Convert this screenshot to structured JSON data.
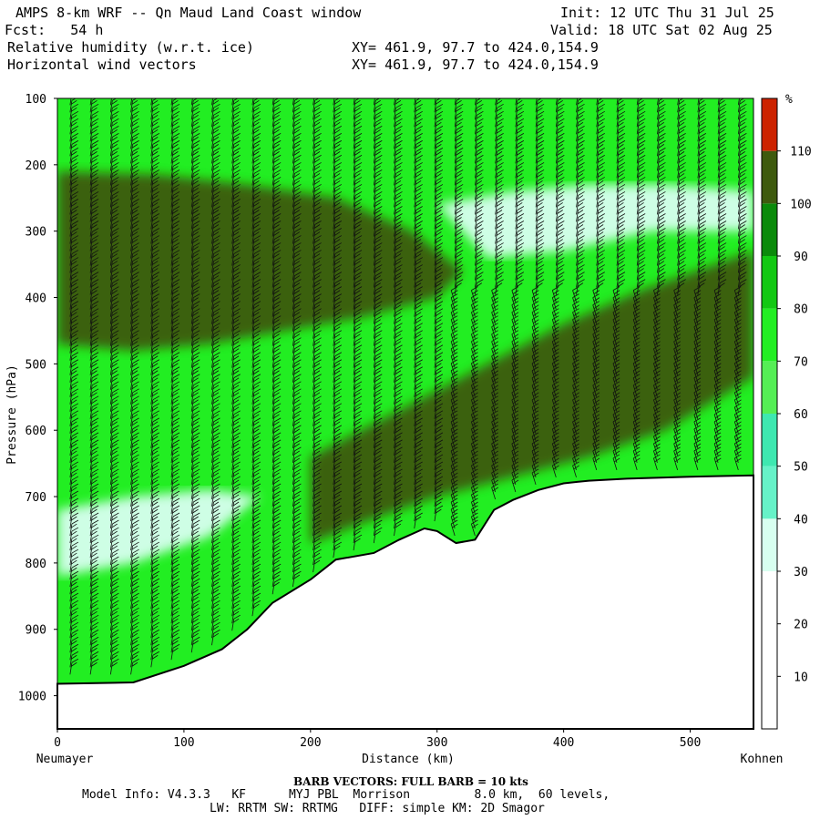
{
  "header": {
    "title": "AMPS 8-km WRF -- Qn Maud Land Coast window",
    "fcst": "Fcst:   54 h",
    "line3": "Relative humidity (w.r.t. ice)",
    "line4": "Horizontal wind vectors",
    "init": "Init: 12 UTC Thu 31 Jul 25",
    "valid": "Valid: 18 UTC Sat 02 Aug 25",
    "xy1": "XY= 461.9, 97.7 to 424.0,154.9",
    "xy2": "XY= 461.9, 97.7 to 424.0,154.9"
  },
  "footer": {
    "barb_note": "BARB VECTORS:  FULL BARB = 10 kts",
    "model_line1": "Model Info: V4.3.3   KF      MYJ PBL  Morrison         8.0 km,  60 levels,",
    "model_line2": "LW: RRTM SW: RRTMG   DIFF: simple KM: 2D Smagor"
  },
  "chart_data": {
    "type": "heatmap",
    "title": "Relative humidity (w.r.t. ice)",
    "xlabel": "Distance (km)",
    "ylabel": "Pressure (hPa)",
    "xlim": [
      0,
      550
    ],
    "ylim": [
      1050,
      100
    ],
    "x_ticks": [
      0,
      100,
      200,
      300,
      400,
      500
    ],
    "y_ticks": [
      100,
      200,
      300,
      400,
      500,
      600,
      700,
      800,
      900,
      1000
    ],
    "x_endpoint_labels": [
      "Neumayer",
      "Kohnen"
    ],
    "colorbar": {
      "unit": "%",
      "ticks": [
        10,
        20,
        30,
        40,
        50,
        60,
        70,
        80,
        90,
        100,
        110
      ],
      "bins": [
        {
          "from": 0,
          "to": 30,
          "color": "#ffffff"
        },
        {
          "from": 30,
          "to": 40,
          "color": "#d8fff0"
        },
        {
          "from": 40,
          "to": 50,
          "color": "#66f2c8"
        },
        {
          "from": 50,
          "to": 60,
          "color": "#3ee8b0"
        },
        {
          "from": 60,
          "to": 70,
          "color": "#55ee55"
        },
        {
          "from": 70,
          "to": 80,
          "color": "#22ee22"
        },
        {
          "from": 80,
          "to": 90,
          "color": "#12c812"
        },
        {
          "from": 90,
          "to": 100,
          "color": "#0a8a0a"
        },
        {
          "from": 100,
          "to": 110,
          "color": "#3e5a0e"
        },
        {
          "from": 110,
          "to": 120,
          "color": "#cc2200"
        }
      ]
    },
    "terrain_surface": {
      "distance_km": [
        0,
        60,
        100,
        130,
        150,
        170,
        200,
        220,
        250,
        270,
        290,
        300,
        315,
        330,
        345,
        360,
        380,
        400,
        420,
        450,
        500,
        550
      ],
      "pressure_hPa": [
        982,
        980,
        955,
        930,
        900,
        860,
        825,
        795,
        785,
        765,
        748,
        752,
        770,
        765,
        720,
        705,
        690,
        680,
        676,
        673,
        670,
        668
      ]
    },
    "rh_regions": [
      {
        "name": "upper moist band",
        "rh_class": 100,
        "distance_km": [
          0,
          80,
          150,
          220,
          280,
          320,
          300,
          240,
          180,
          120,
          60,
          0
        ],
        "pressure_hPa": [
          210,
          215,
          230,
          250,
          300,
          360,
          400,
          430,
          450,
          470,
          480,
          470
        ]
      },
      {
        "name": "lower elevated moist layer",
        "rh_class": 100,
        "distance_km": [
          200,
          280,
          340,
          400,
          460,
          520,
          550,
          550,
          480,
          420,
          360,
          300,
          240,
          200
        ],
        "pressure_hPa": [
          640,
          560,
          500,
          440,
          390,
          350,
          330,
          520,
          600,
          640,
          670,
          700,
          740,
          770
        ]
      },
      {
        "name": "upper dry pocket",
        "rh_class": 30,
        "distance_km": [
          300,
          360,
          420,
          480,
          550,
          550,
          470,
          400,
          340
        ],
        "pressure_hPa": [
          260,
          240,
          230,
          230,
          240,
          300,
          300,
          330,
          340
        ]
      },
      {
        "name": "lower dry band",
        "rh_class": 30,
        "distance_km": [
          0,
          60,
          120,
          160,
          120,
          60,
          0
        ],
        "pressure_hPa": [
          720,
          700,
          690,
          700,
          760,
          800,
          820
        ]
      }
    ],
    "wind_barbs": {
      "full_barb_kts": 10
    }
  }
}
